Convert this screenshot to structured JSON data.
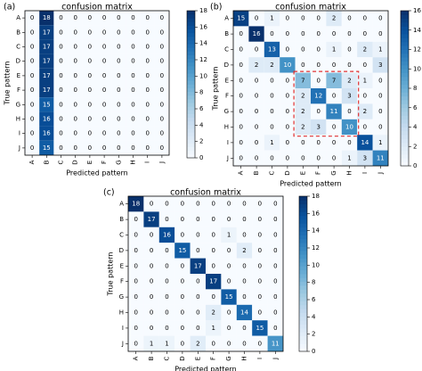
{
  "chart_data": [
    {
      "type": "heatmap",
      "panel_label": "(a)",
      "title": "confusion matrix",
      "xlabel": "Predicted pattern",
      "ylabel": "True pattern",
      "row_labels": [
        "A",
        "B",
        "C",
        "D",
        "E",
        "F",
        "G",
        "H",
        "I",
        "J"
      ],
      "col_labels": [
        "A",
        "B",
        "C",
        "D",
        "E",
        "F",
        "G",
        "H",
        "I",
        "J"
      ],
      "values": [
        [
          0,
          18,
          0,
          0,
          0,
          0,
          0,
          0,
          0,
          0
        ],
        [
          0,
          17,
          0,
          0,
          0,
          0,
          0,
          0,
          0,
          0
        ],
        [
          0,
          17,
          0,
          0,
          0,
          0,
          0,
          0,
          0,
          0
        ],
        [
          0,
          17,
          0,
          0,
          0,
          0,
          0,
          0,
          0,
          0
        ],
        [
          0,
          17,
          0,
          0,
          0,
          0,
          0,
          0,
          0,
          0
        ],
        [
          0,
          17,
          0,
          0,
          0,
          0,
          0,
          0,
          0,
          0
        ],
        [
          0,
          15,
          0,
          0,
          0,
          0,
          0,
          0,
          0,
          0
        ],
        [
          0,
          16,
          0,
          0,
          0,
          0,
          0,
          0,
          0,
          0
        ],
        [
          0,
          16,
          0,
          0,
          0,
          0,
          0,
          0,
          0,
          0
        ],
        [
          0,
          15,
          0,
          0,
          0,
          0,
          0,
          0,
          0,
          0
        ]
      ],
      "colorbar": {
        "min": 0,
        "max": 18,
        "ticks": [
          0,
          2,
          4,
          6,
          8,
          10,
          12,
          14,
          16,
          18
        ]
      }
    },
    {
      "type": "heatmap",
      "panel_label": "(b)",
      "title": "confusion matrix",
      "xlabel": "Predicted pattern",
      "ylabel": "True pattern",
      "row_labels": [
        "A",
        "B",
        "C",
        "D",
        "E",
        "F",
        "G",
        "H",
        "I",
        "J"
      ],
      "col_labels": [
        "A",
        "B",
        "C",
        "D",
        "E",
        "F",
        "G",
        "H",
        "I",
        "J"
      ],
      "values": [
        [
          15,
          0,
          1,
          0,
          0,
          0,
          2,
          0,
          0,
          0
        ],
        [
          0,
          16,
          0,
          0,
          0,
          0,
          0,
          0,
          0,
          0
        ],
        [
          0,
          0,
          13,
          0,
          0,
          0,
          1,
          0,
          2,
          1
        ],
        [
          0,
          2,
          2,
          10,
          0,
          0,
          0,
          0,
          0,
          3
        ],
        [
          0,
          0,
          0,
          0,
          7,
          0,
          7,
          2,
          1,
          0
        ],
        [
          0,
          0,
          0,
          0,
          2,
          12,
          0,
          3,
          0,
          0
        ],
        [
          0,
          0,
          0,
          0,
          2,
          0,
          11,
          0,
          2,
          0
        ],
        [
          0,
          0,
          0,
          0,
          2,
          3,
          0,
          10,
          0,
          0
        ],
        [
          0,
          0,
          1,
          0,
          0,
          0,
          0,
          0,
          14,
          1
        ],
        [
          0,
          0,
          0,
          0,
          0,
          0,
          0,
          1,
          3,
          11
        ]
      ],
      "highlight": {
        "rows": [
          4,
          7
        ],
        "cols": [
          4,
          7
        ],
        "color": "#e03030"
      },
      "colorbar": {
        "min": 0,
        "max": 16,
        "ticks": [
          0,
          2,
          4,
          6,
          8,
          10,
          12,
          14,
          16
        ]
      }
    },
    {
      "type": "heatmap",
      "panel_label": "(c)",
      "title": "confusion matrix",
      "xlabel": "Predicted pattern",
      "ylabel": "True pattern",
      "row_labels": [
        "A",
        "B",
        "C",
        "D",
        "E",
        "F",
        "G",
        "H",
        "I",
        "J"
      ],
      "col_labels": [
        "A",
        "B",
        "C",
        "D",
        "E",
        "F",
        "G",
        "H",
        "I",
        "J"
      ],
      "values": [
        [
          18,
          0,
          0,
          0,
          0,
          0,
          0,
          0,
          0,
          0
        ],
        [
          0,
          17,
          0,
          0,
          0,
          0,
          0,
          0,
          0,
          0
        ],
        [
          0,
          0,
          16,
          0,
          0,
          0,
          1,
          0,
          0,
          0
        ],
        [
          0,
          0,
          0,
          15,
          0,
          0,
          0,
          2,
          0,
          0
        ],
        [
          0,
          0,
          0,
          0,
          17,
          0,
          0,
          0,
          0,
          0
        ],
        [
          0,
          0,
          0,
          0,
          0,
          17,
          0,
          0,
          0,
          0
        ],
        [
          0,
          0,
          0,
          0,
          0,
          0,
          15,
          0,
          0,
          0
        ],
        [
          0,
          0,
          0,
          0,
          0,
          2,
          0,
          14,
          0,
          0
        ],
        [
          0,
          0,
          0,
          0,
          0,
          1,
          0,
          0,
          15,
          0
        ],
        [
          0,
          1,
          1,
          0,
          2,
          0,
          0,
          0,
          0,
          11
        ]
      ],
      "colorbar": {
        "min": 0,
        "max": 18,
        "ticks": [
          0,
          2,
          4,
          6,
          8,
          10,
          12,
          14,
          16,
          18
        ]
      }
    }
  ]
}
